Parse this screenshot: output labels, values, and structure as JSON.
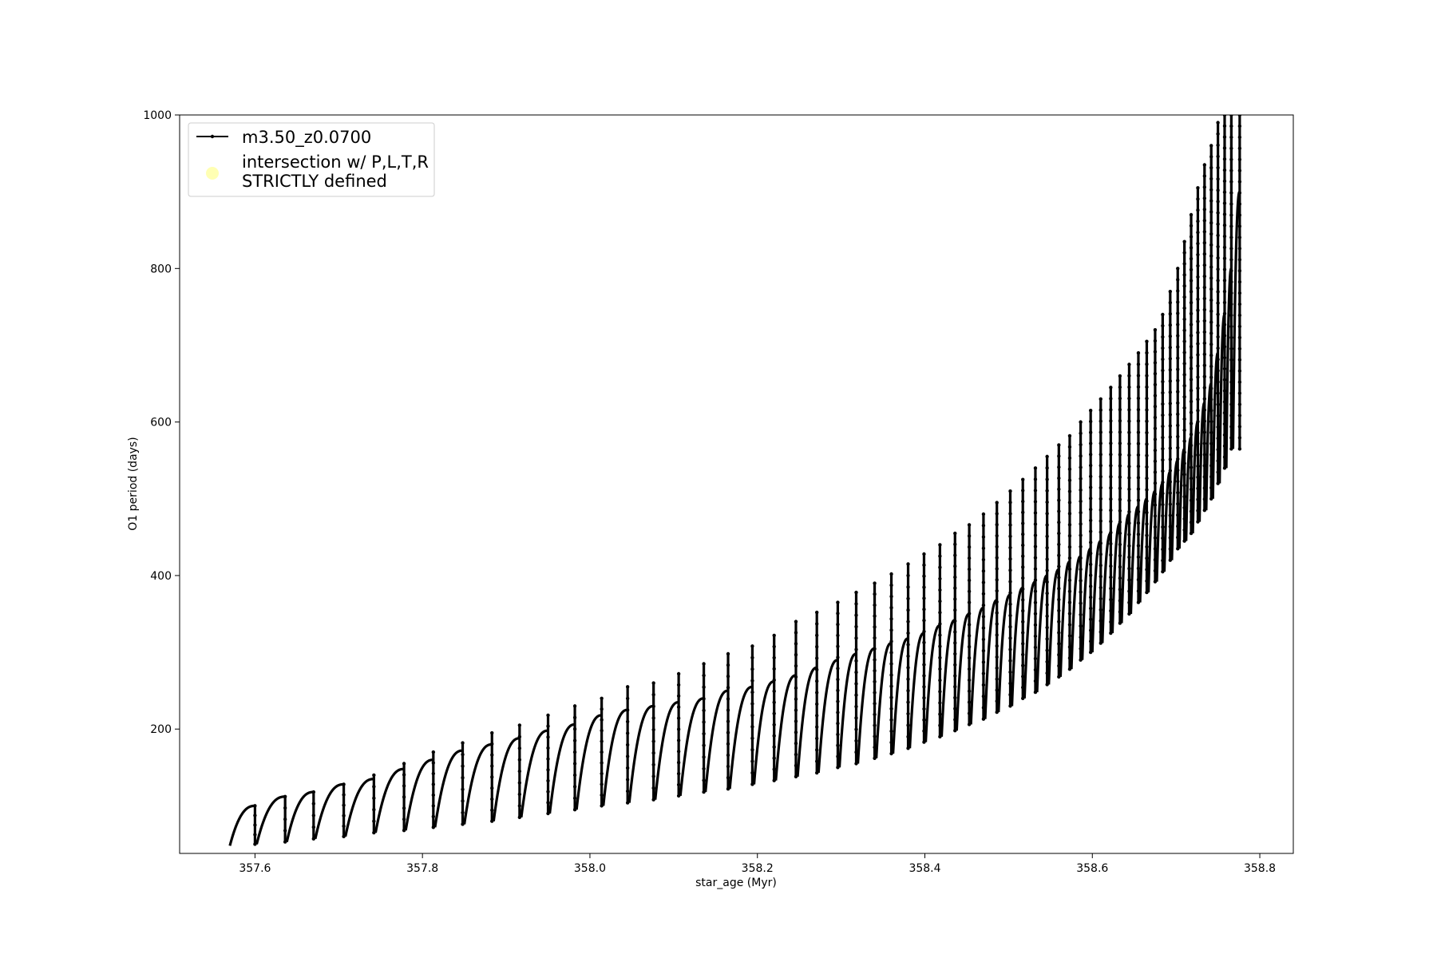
{
  "chart_data": {
    "type": "line",
    "xlabel": "star_age (Myr)",
    "ylabel": "O1 period (days)",
    "xlim": [
      357.51,
      358.84
    ],
    "ylim": [
      38,
      1000
    ],
    "xticks": [
      357.6,
      357.8,
      358.0,
      358.2,
      358.4,
      358.6,
      358.8
    ],
    "xtick_labels": [
      "357.6",
      "357.8",
      "358.0",
      "358.2",
      "358.4",
      "358.6",
      "358.8"
    ],
    "yticks": [
      200,
      400,
      600,
      800,
      1000
    ],
    "ytick_labels": [
      "200",
      "400",
      "600",
      "800",
      "1000"
    ],
    "grid": false,
    "legend_position": "top-left",
    "colors": {
      "line": "#000000",
      "marker": "#000000",
      "intersection": "#ffffb3"
    },
    "legend": [
      {
        "label": "m3.50_z0.0700",
        "style": "line-with-marker"
      },
      {
        "label_lines": [
          "intersection w/ P,L,T,R",
          "STRICTLY defined"
        ],
        "style": "circle-marker"
      }
    ],
    "series": [
      {
        "name": "m3.50_z0.0700",
        "pulse_starts": [
          357.57,
          357.602,
          357.638,
          357.672,
          357.708,
          357.744,
          357.78,
          357.815,
          357.85,
          357.885,
          357.918,
          357.952,
          357.984,
          358.016,
          358.047,
          358.078,
          358.108,
          358.138,
          358.167,
          358.196,
          358.222,
          358.248,
          358.273,
          358.298,
          358.32,
          358.342,
          358.362,
          358.382,
          358.401,
          358.42,
          358.438,
          358.455,
          358.472,
          358.488,
          358.504,
          358.519,
          358.534,
          358.548,
          358.562,
          358.575,
          358.588,
          358.6,
          358.612,
          358.624,
          358.635,
          358.646,
          358.657,
          358.667,
          358.677,
          358.686,
          358.695,
          358.704,
          358.712,
          358.72,
          358.728,
          358.736,
          358.744,
          358.752,
          358.76,
          358.768
        ],
        "pulse_ends": [
          357.6,
          357.636,
          357.67,
          357.706,
          357.742,
          357.778,
          357.813,
          357.848,
          357.883,
          357.916,
          357.95,
          357.982,
          358.014,
          358.045,
          358.076,
          358.106,
          358.136,
          358.165,
          358.194,
          358.22,
          358.246,
          358.271,
          358.296,
          358.318,
          358.34,
          358.36,
          358.38,
          358.399,
          358.418,
          358.436,
          358.453,
          358.47,
          358.486,
          358.502,
          358.517,
          358.532,
          358.546,
          358.56,
          358.573,
          358.586,
          358.598,
          358.61,
          358.622,
          358.633,
          358.644,
          358.655,
          358.665,
          358.675,
          358.684,
          358.693,
          358.702,
          358.71,
          358.718,
          358.726,
          358.734,
          358.742,
          358.75,
          358.758,
          358.766,
          358.776
        ],
        "pulse_min_period": [
          48,
          50,
          53,
          57,
          60,
          65,
          68,
          72,
          76,
          80,
          85,
          90,
          95,
          100,
          104,
          108,
          113,
          118,
          122,
          128,
          133,
          138,
          143,
          150,
          155,
          162,
          168,
          175,
          183,
          190,
          198,
          206,
          213,
          222,
          230,
          240,
          248,
          258,
          268,
          278,
          290,
          300,
          312,
          325,
          338,
          350,
          365,
          378,
          392,
          405,
          420,
          435,
          445,
          455,
          470,
          485,
          500,
          520,
          540,
          565
        ],
        "pulse_max_period": [
          100,
          112,
          118,
          128,
          135,
          148,
          160,
          172,
          180,
          188,
          198,
          206,
          218,
          225,
          230,
          235,
          240,
          250,
          255,
          262,
          270,
          280,
          290,
          298,
          305,
          312,
          318,
          325,
          335,
          342,
          350,
          358,
          368,
          375,
          384,
          392,
          400,
          408,
          418,
          425,
          435,
          445,
          455,
          468,
          480,
          490,
          500,
          510,
          520,
          535,
          550,
          565,
          580,
          600,
          625,
          650,
          690,
          740,
          800,
          900
        ],
        "pulse_spike_period": [
          100,
          112,
          118,
          128,
          140,
          155,
          170,
          182,
          195,
          205,
          218,
          230,
          240,
          255,
          260,
          272,
          285,
          298,
          308,
          322,
          340,
          352,
          365,
          378,
          390,
          402,
          415,
          428,
          440,
          455,
          466,
          480,
          495,
          510,
          525,
          540,
          555,
          570,
          582,
          600,
          615,
          630,
          645,
          660,
          675,
          690,
          705,
          720,
          740,
          770,
          800,
          835,
          870,
          905,
          935,
          960,
          990,
          1000,
          1000,
          1000
        ]
      }
    ]
  }
}
